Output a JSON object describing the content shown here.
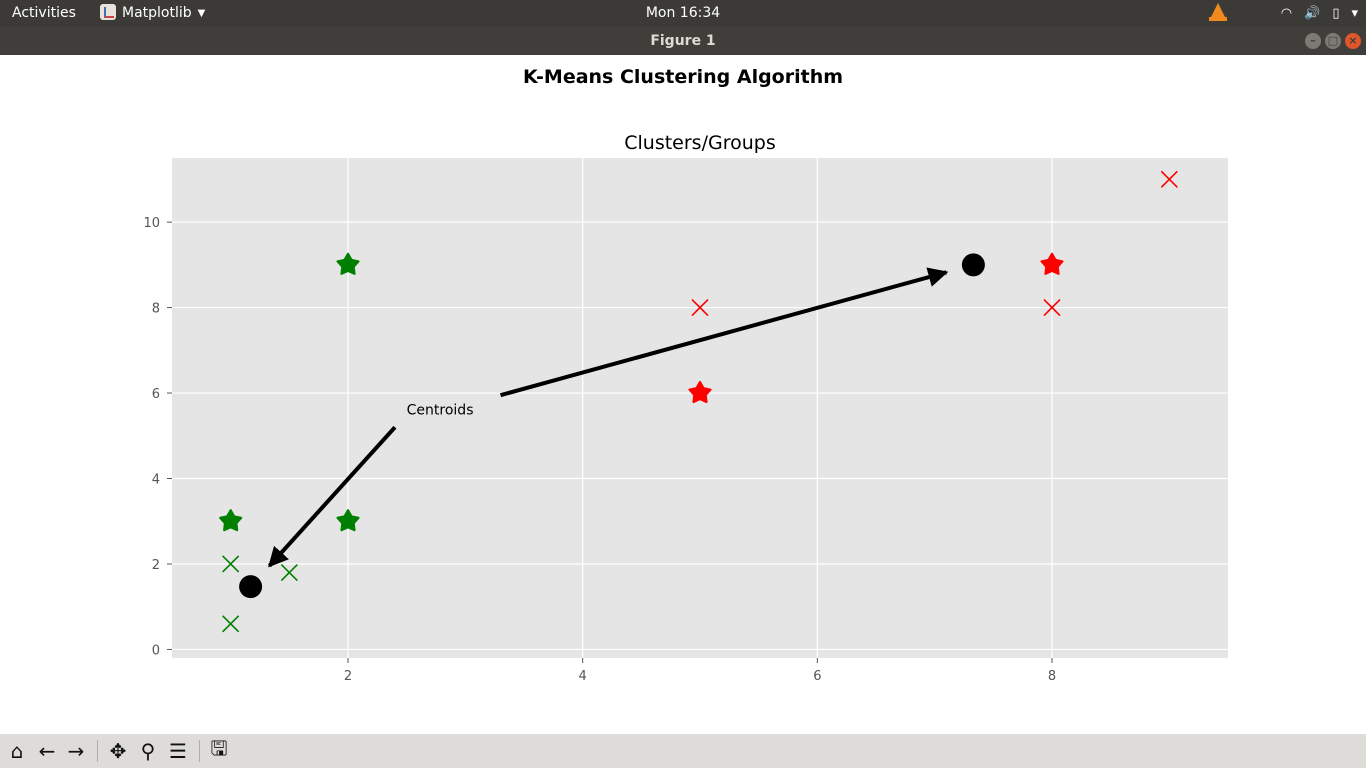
{
  "topbar": {
    "activities": "Activities",
    "app_name": "Matplotlib",
    "clock": "Mon 16:34"
  },
  "window": {
    "title": "Figure 1"
  },
  "figure": {
    "suptitle": "K-Means Clustering Algorithm"
  },
  "chart_data": {
    "type": "scatter",
    "title": "Clusters/Groups",
    "xlabel": "",
    "ylabel": "",
    "xlim": [
      0.5,
      9.5
    ],
    "ylim": [
      -0.2,
      11.5
    ],
    "xticks": [
      2,
      4,
      6,
      8
    ],
    "yticks": [
      0,
      2,
      4,
      6,
      8,
      10
    ],
    "grid": true,
    "series": [
      {
        "marker": "star",
        "color": "#008000",
        "points": [
          [
            2,
            9
          ],
          [
            1,
            3
          ],
          [
            2,
            3
          ]
        ]
      },
      {
        "marker": "x",
        "color": "#008000",
        "points": [
          [
            1,
            2
          ],
          [
            1.5,
            1.8
          ],
          [
            1,
            0.6
          ]
        ]
      },
      {
        "marker": "star",
        "color": "#ff0000",
        "points": [
          [
            8,
            9
          ],
          [
            5,
            6
          ]
        ]
      },
      {
        "marker": "x",
        "color": "#ff0000",
        "points": [
          [
            9,
            11
          ],
          [
            5,
            8
          ],
          [
            8,
            8
          ]
        ]
      },
      {
        "marker": "circle",
        "color": "#000000",
        "points": [
          [
            1.17,
            1.47
          ],
          [
            7.33,
            9.0
          ]
        ]
      }
    ],
    "annotation": {
      "text": "Centroids",
      "text_pos": [
        2.5,
        5.5
      ],
      "arrows": [
        {
          "from": [
            2.4,
            5.2
          ],
          "to": [
            1.17,
            1.47
          ]
        },
        {
          "from": [
            3.3,
            5.95
          ],
          "to": [
            7.33,
            9.0
          ]
        }
      ]
    }
  },
  "toolbar": {
    "buttons": [
      "home-icon",
      "back-icon",
      "forward-icon",
      "pan-icon",
      "zoom-icon",
      "configure-icon",
      "save-icon"
    ]
  }
}
